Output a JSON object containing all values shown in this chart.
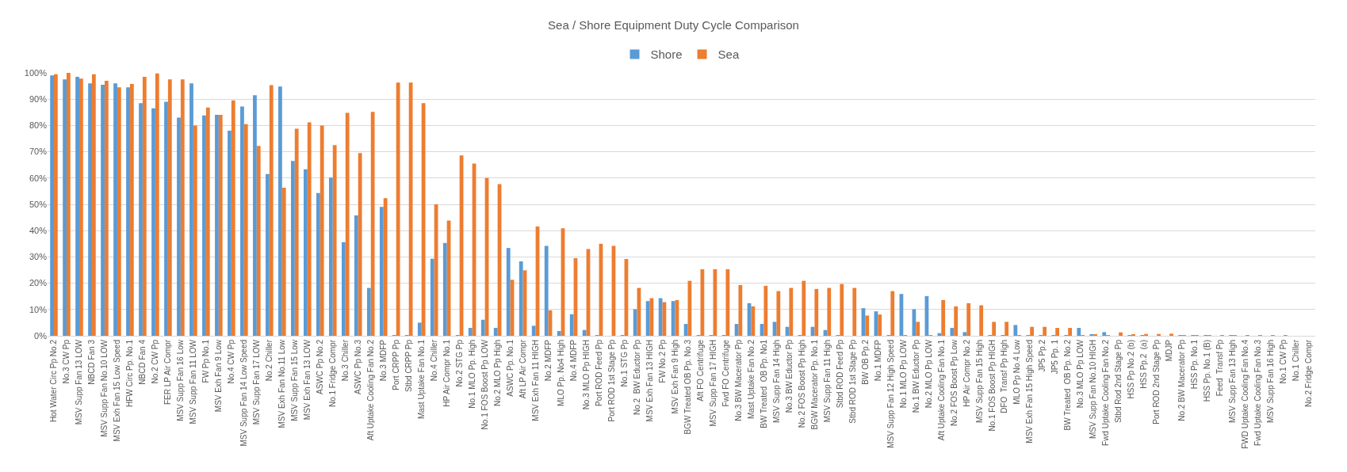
{
  "chart_data": {
    "type": "bar",
    "title": "Sea / Shore Equipment Duty Cycle Comparison",
    "categories": [
      "Hot Water Circ Pp No.2",
      "No.3 CW Pp",
      "MSV Supp Fan 13 LOW",
      "NBCD Fan 3",
      "MSV Supp Fan No.10 LOW",
      "MSV Exh Fan 15 Low Speed",
      "HFW Circ Pp. No.1",
      "NBCD Fan 4",
      "No.2 CW Pp",
      "FER LP Air Compr",
      "MSV Supp Fan 16 Low",
      "MSV Supp Fan 11 LOW",
      "FW Pp No.1",
      "MSV Exh Fan 9 Low",
      "No.4 CW Pp",
      "MSV Supp Fan 14 Low Speed",
      "MSV Supp Fan 17 LOW",
      "No.2 Chiller",
      "MSV Exh Fan No.11 Low",
      "MSV Supp Fan 15 Low",
      "MSV Exh Fan 13 LOW",
      "ASWC Pp No.2",
      "No.1 Fridge Compr",
      "No.3 Chiller",
      "ASWC Pp No.3",
      "Aft Uptake Cooling Fan No.2",
      "No.3 MDFP",
      "Port CRPP Pp",
      "Stbd CRPP Pp",
      "Mast Uptake Fan No.1",
      "No.4 Chiller",
      "HP Air Compr No.1",
      "No.2 STG Pp",
      "No.1 MLO Pp. High",
      "No.1 FOS Boost Pp LOW",
      "No.2 MLO Pp High",
      "ASWC Pp. No.1",
      "Aft LP Air Compr",
      "MSV Exh Fan 11 HIGH",
      "No.2 MDFP",
      "MLO Pp. No4 High",
      "No.4 MDFP",
      "No.3 MLO Pp HIGH",
      "Port ROD Feed Pp",
      "Port ROD 1st Stage Pp",
      "No.1 STG Pp",
      "No.2  BW Eductor Pp",
      "MSV Exh Fan 13 HIGH",
      "FW No.2 Pp",
      "MSV Exh Fan 9 High",
      "BGW Treated OB Pp. No.3",
      "Aft FO Centrifuge",
      "MSV Supp Fan 17 HIGH",
      "Fwd FO Centrifuge",
      "No.3 BW Macerator Pp",
      "Mast Uptake Fan No.2",
      "BW Treated  OB Pp. No1",
      "MSV Supp Fan 14 High",
      "No.3 BW Eductor Pp",
      "No.2 FOS Boost Pp High",
      "BGW Macerator Pp. No.1",
      "MSV Supp Fan 11 High",
      "Stbd ROD Feed Pp",
      "Stbd ROD 1st Stage Pp",
      "BW OB Pp.2",
      "No.1 MDFP",
      "MSV Supp Fan 12 High Speed",
      "No.1 MLO Pp LOW",
      "No.1 BW Eductor Pp",
      "No.2 MLO Pp LOW",
      "Aft Uptake Cooling Fan No.1",
      "No.2 FOS Boost Pp Low",
      "HP Air Compr No.2",
      "MSV Supp Fan 15 High",
      "No.1 FOS Boost Pp HIGH",
      "DFO  Transf Pp High",
      "MLO Pp No.4 Low",
      "MSV Exh Fan 15 High Speed",
      "JP5 Pp.2",
      "JP5 Pp. 1",
      "BW Treated  OB Pp. No.2",
      "No.3 MLO Pp LOW",
      "MSV Supp Fan No.10 HIGH",
      "Fwd Uptake Cooling Fan No.2",
      "Stbd Rod 2nd Stage Pp",
      "HSS Pp No.2 (b)",
      "HSS Pp.2  (a)",
      "Port ROD 2nd Stage Pp",
      "MDJP",
      "No.2 BW Macerator Pp",
      "HSS Pp. No.1",
      "HSS Pp. No.1 (B)",
      "Feed  Transf Pp",
      "MSV Supp Fan 13 High",
      "FWD Uptake Cooling Fan No.4",
      "Fwd Uptake Cooling Fan No.3",
      "MSV Supp Fan 16 High",
      "No.1 CW Pp",
      "No.1 Chiller",
      "No.2 Fridge Compr"
    ],
    "series": [
      {
        "name": "Shore",
        "color": "#5b9bd5",
        "values": [
          99,
          97.5,
          98.5,
          96,
          95.5,
          96,
          94.5,
          88.5,
          86.5,
          89,
          83,
          96,
          83.8,
          84,
          78,
          87.2,
          91.5,
          61.5,
          94.8,
          66.5,
          63.3,
          54.3,
          60.2,
          35.6,
          45.8,
          18.2,
          49,
          0.2,
          0.2,
          5,
          29.3,
          35.3,
          0.2,
          3,
          6.1,
          3,
          33.4,
          28.3,
          3.8,
          34.2,
          1.8,
          8.2,
          2.2,
          0.2,
          0,
          0.2,
          10.1,
          13.2,
          14.3,
          13.2,
          4.5,
          0.2,
          0.2,
          0.2,
          4.5,
          12.4,
          4.5,
          5.3,
          3.4,
          0.2,
          3.4,
          2.2,
          0.2,
          0,
          10.5,
          9.3,
          0.2,
          15.9,
          10.1,
          15.1,
          1,
          3,
          1.4,
          0,
          0.2,
          0.2,
          4.1,
          0.2,
          0.2,
          0.2,
          0.2,
          3,
          0.5,
          1.4,
          0,
          0.3,
          0.3,
          0,
          0,
          0.3,
          0.3,
          0.3,
          0,
          0.3,
          0,
          0,
          0,
          0,
          0,
          0
        ]
      },
      {
        "name": "Sea",
        "color": "#ed7d31",
        "values": [
          99.5,
          100,
          97.8,
          99.5,
          97,
          94.5,
          95.8,
          98.5,
          99.8,
          97.5,
          97.5,
          80,
          86.8,
          84,
          89.5,
          80.5,
          72.2,
          95.3,
          56.3,
          78.8,
          81.2,
          80,
          72.5,
          84.8,
          69.5,
          85.2,
          52.3,
          96.3,
          96.3,
          88.5,
          50,
          43.8,
          68.6,
          65.5,
          60,
          57.7,
          21.3,
          24.9,
          41.6,
          9.7,
          40.9,
          29.5,
          33,
          35,
          34.2,
          29.2,
          18.2,
          14.3,
          12.8,
          13.6,
          20.9,
          25.3,
          25.3,
          25.3,
          19.3,
          11.2,
          19,
          17,
          18.2,
          20.9,
          17.8,
          18.2,
          19.7,
          18.2,
          7.7,
          8.1,
          17,
          0.2,
          5.3,
          0.2,
          13.6,
          11.2,
          12.4,
          11.6,
          5.3,
          5.3,
          0.2,
          3.4,
          3.4,
          3,
          3,
          0.2,
          0.6,
          0.2,
          1.3,
          0.6,
          0.7,
          0.7,
          0.8,
          0.3,
          0.3,
          0.3,
          0.3,
          0.3,
          0.2,
          0.2,
          0.2,
          0.2,
          0,
          0
        ]
      }
    ],
    "ylim": [
      0,
      100
    ],
    "yticks": [
      {
        "value": 0,
        "label": "0%"
      },
      {
        "value": 10,
        "label": "10%"
      },
      {
        "value": 20,
        "label": "20%"
      },
      {
        "value": 30,
        "label": "30%"
      },
      {
        "value": 40,
        "label": "40%"
      },
      {
        "value": 50,
        "label": "50%"
      },
      {
        "value": 60,
        "label": "60%"
      },
      {
        "value": 70,
        "label": "70%"
      },
      {
        "value": 80,
        "label": "80%"
      },
      {
        "value": 90,
        "label": "90%"
      },
      {
        "value": 100,
        "label": "100%"
      }
    ],
    "grid": "y",
    "legend": "top"
  }
}
